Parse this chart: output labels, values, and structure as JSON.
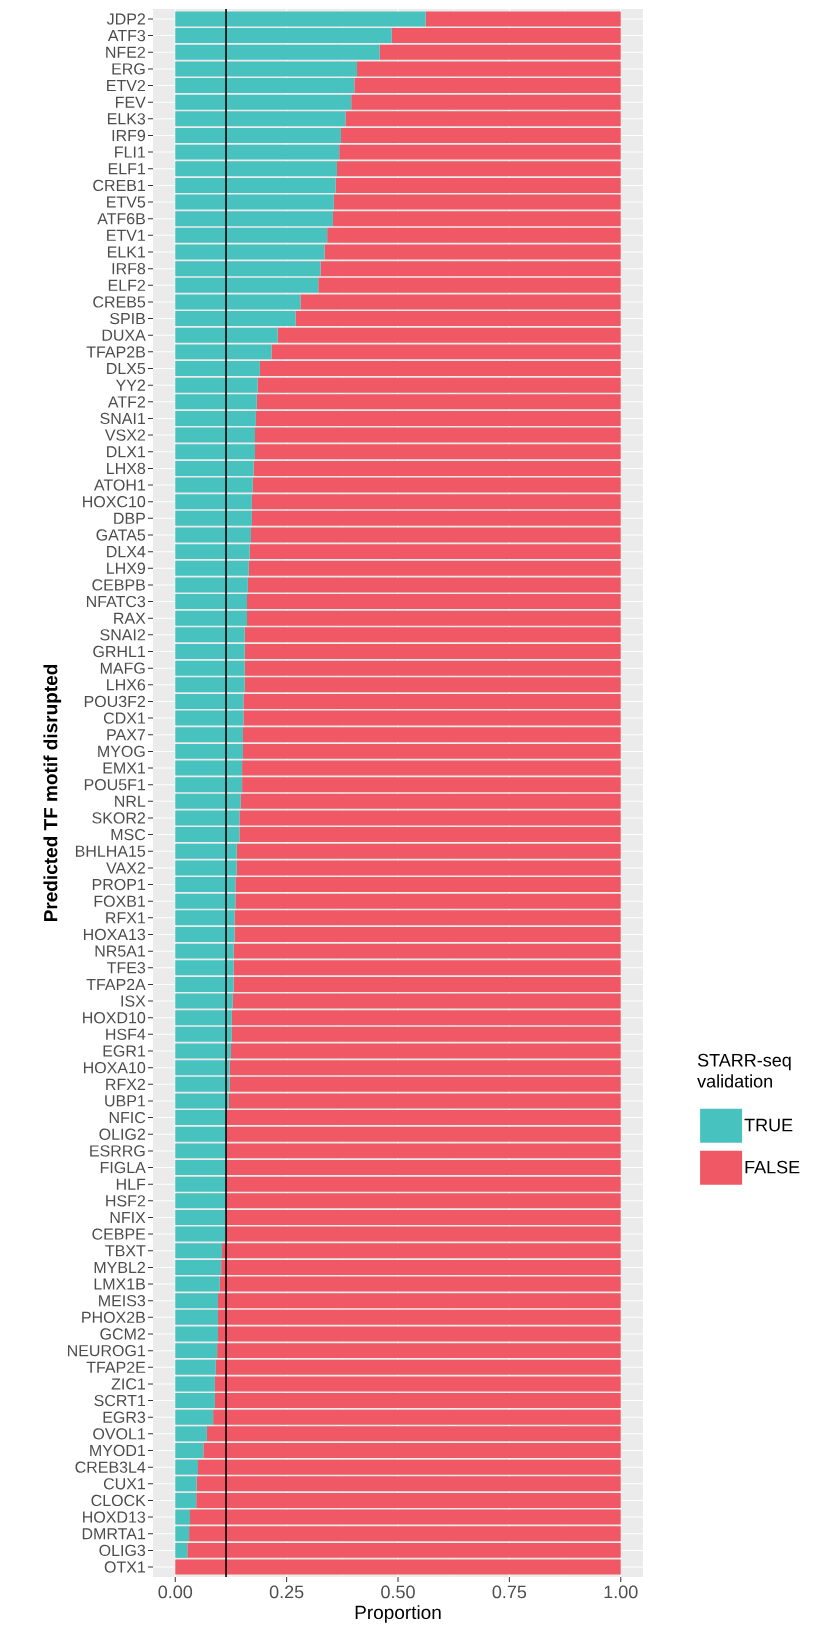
{
  "chart_data": {
    "type": "bar",
    "orientation": "horizontal",
    "stacked": true,
    "xlabel": "Proportion",
    "ylabel": "Predicted TF motif disrupted",
    "legend_title": "STARR-seq validation",
    "legend": "right",
    "grid": true,
    "categories": [
      "JDP2",
      "ATF3",
      "NFE2",
      "ERG",
      "ETV2",
      "FEV",
      "ELK3",
      "IRF9",
      "FLI1",
      "ELF1",
      "CREB1",
      "ETV5",
      "ATF6B",
      "ETV1",
      "ELK1",
      "IRF8",
      "ELF2",
      "CREB5",
      "SPIB",
      "DUXA",
      "TFAP2B",
      "DLX5",
      "YY2",
      "ATF2",
      "SNAI1",
      "VSX2",
      "DLX1",
      "LHX8",
      "ATOH1",
      "HOXC10",
      "DBP",
      "GATA5",
      "DLX4",
      "LHX9",
      "CEBPB",
      "NFATC3",
      "RAX",
      "SNAI2",
      "GRHL1",
      "MAFG",
      "LHX6",
      "POU3F2",
      "CDX1",
      "PAX7",
      "MYOG",
      "EMX1",
      "POU5F1",
      "NRL",
      "SKOR2",
      "MSC",
      "BHLHA15",
      "VAX2",
      "PROP1",
      "FOXB1",
      "RFX1",
      "HOXA13",
      "NR5A1",
      "TFE3",
      "TFAP2A",
      "ISX",
      "HOXD10",
      "HSF4",
      "EGR1",
      "HOXA10",
      "RFX2",
      "UBP1",
      "NFIC",
      "OLIG2",
      "ESRRG",
      "FIGLA",
      "HLF",
      "HSF2",
      "NFIX",
      "CEBPE",
      "TBXT",
      "MYBL2",
      "LMX1B",
      "MEIS3",
      "PHOX2B",
      "GCM2",
      "NEUROG1",
      "TFAP2E",
      "ZIC1",
      "SCRT1",
      "EGR3",
      "OVOL1",
      "MYOD1",
      "CREB3L4",
      "CUX1",
      "CLOCK",
      "HOXD13",
      "DMRTA1",
      "OLIG3",
      "OTX1"
    ],
    "series": [
      {
        "name": "TRUE",
        "color": "#48c2bf",
        "values": [
          0.562,
          0.486,
          0.459,
          0.408,
          0.402,
          0.395,
          0.382,
          0.372,
          0.368,
          0.363,
          0.36,
          0.356,
          0.354,
          0.341,
          0.335,
          0.326,
          0.321,
          0.281,
          0.27,
          0.23,
          0.216,
          0.19,
          0.185,
          0.183,
          0.181,
          0.179,
          0.179,
          0.176,
          0.174,
          0.172,
          0.172,
          0.17,
          0.167,
          0.165,
          0.163,
          0.161,
          0.161,
          0.156,
          0.156,
          0.156,
          0.156,
          0.153,
          0.153,
          0.152,
          0.152,
          0.15,
          0.15,
          0.147,
          0.144,
          0.144,
          0.138,
          0.138,
          0.135,
          0.135,
          0.133,
          0.133,
          0.131,
          0.131,
          0.131,
          0.129,
          0.127,
          0.127,
          0.125,
          0.122,
          0.122,
          0.12,
          0.115,
          0.115,
          0.115,
          0.115,
          0.115,
          0.115,
          0.113,
          0.113,
          0.105,
          0.103,
          0.1,
          0.096,
          0.096,
          0.096,
          0.094,
          0.091,
          0.089,
          0.089,
          0.085,
          0.071,
          0.063,
          0.051,
          0.048,
          0.047,
          0.033,
          0.031,
          0.027,
          0
        ]
      },
      {
        "name": "FALSE",
        "color": "#f05865",
        "values": [
          0.438,
          0.514,
          0.541,
          0.592,
          0.598,
          0.605,
          0.618,
          0.628,
          0.632,
          0.637,
          0.64,
          0.644,
          0.646,
          0.659,
          0.665,
          0.674,
          0.679,
          0.719,
          0.73,
          0.77,
          0.784,
          0.81,
          0.815,
          0.817,
          0.819,
          0.821,
          0.821,
          0.824,
          0.826,
          0.828,
          0.828,
          0.83,
          0.833,
          0.835,
          0.837,
          0.839,
          0.839,
          0.844,
          0.844,
          0.844,
          0.844,
          0.847,
          0.847,
          0.848,
          0.848,
          0.85,
          0.85,
          0.853,
          0.856,
          0.856,
          0.862,
          0.862,
          0.865,
          0.865,
          0.867,
          0.867,
          0.869,
          0.869,
          0.869,
          0.871,
          0.873,
          0.873,
          0.875,
          0.878,
          0.878,
          0.88,
          0.885,
          0.885,
          0.885,
          0.885,
          0.885,
          0.885,
          0.887,
          0.887,
          0.895,
          0.897,
          0.9,
          0.904,
          0.904,
          0.904,
          0.906,
          0.909,
          0.911,
          0.911,
          0.915,
          0.929,
          0.937,
          0.949,
          0.952,
          0.953,
          0.967,
          0.969,
          0.973,
          1
        ]
      }
    ],
    "xlim": [
      -0.05,
      1.05
    ],
    "xticks": [
      {
        "value": 0,
        "label": "0.00"
      },
      {
        "value": 0.25,
        "label": "0.25"
      },
      {
        "value": 0.5,
        "label": "0.50"
      },
      {
        "value": 0.75,
        "label": "0.75"
      },
      {
        "value": 1,
        "label": "1.00"
      }
    ],
    "ref_lines": [
      {
        "axis": "x",
        "value": 0.114,
        "color": "#000000"
      }
    ]
  }
}
